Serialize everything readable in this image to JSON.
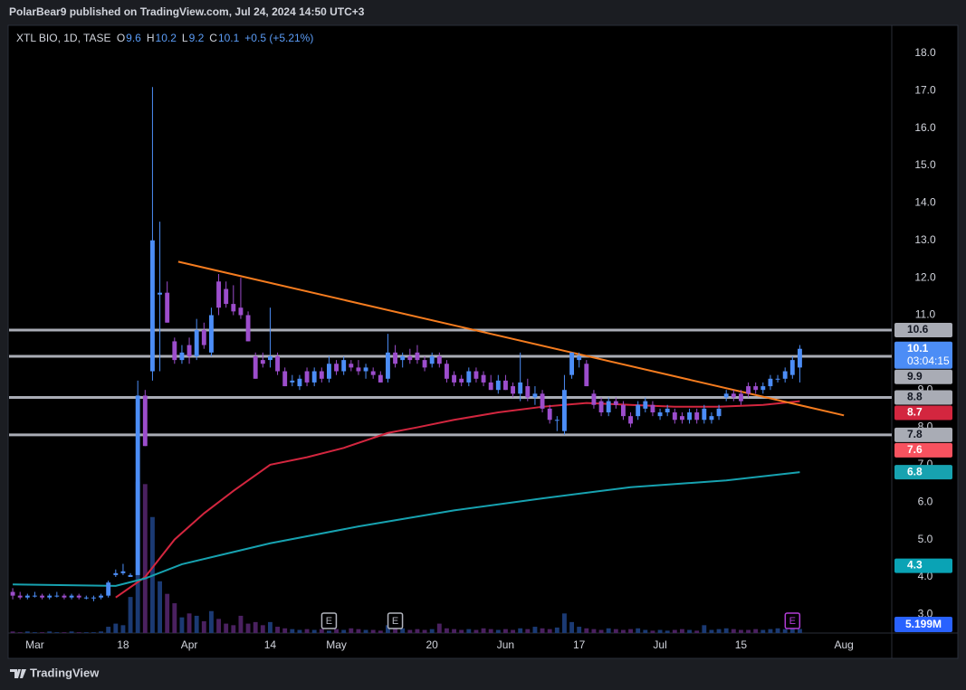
{
  "chart_data": {
    "type": "candlestick",
    "title": "PolarBear9 published on TradingView.com, Jul 24, 2024 14:50 UTC+3",
    "symbol": "XTL BIO, 1D, TASE",
    "legend": {
      "open": "O",
      "high": "H",
      "low": "L",
      "close": "C",
      "change": "+0.5 (+5.21%)"
    },
    "footer": "TradingView",
    "countdown": "03:04:15",
    "up_color": "#4c8df6",
    "down_color": "#9c4dcc",
    "candles": {
      "open": [
        3.6,
        3.5,
        3.45,
        3.5,
        3.5,
        3.45,
        3.5,
        3.5,
        3.45,
        3.5,
        3.45,
        3.45,
        3.45,
        3.5,
        4.05,
        4.1,
        4.0,
        4.05,
        8.85,
        9.5,
        11.55,
        11.6,
        10.3,
        9.8,
        10.2,
        9.9,
        10.6,
        10.0,
        11.9,
        11.7,
        11.3,
        11.2,
        11.0,
        9.9,
        9.8,
        9.8,
        9.9,
        9.5,
        9.2,
        9.1,
        9.5,
        9.2,
        9.5,
        9.3,
        9.7,
        9.5,
        9.7,
        9.6,
        9.5,
        9.5,
        9.4,
        9.3,
        10.0,
        9.8,
        9.9,
        10.0,
        9.8,
        9.7,
        9.9,
        9.7,
        9.4,
        9.3,
        9.2,
        9.5,
        9.4,
        9.2,
        9.0,
        9.25,
        9.1,
        8.9,
        9.1,
        8.8,
        8.9,
        8.5,
        8.2,
        7.9,
        9.4,
        9.8,
        9.7,
        8.9,
        8.7,
        8.4,
        8.7,
        8.6,
        8.3,
        8.3,
        8.5,
        8.6,
        8.3,
        8.4,
        8.4,
        8.3,
        8.2,
        8.4,
        8.2,
        8.2,
        8.3,
        8.8,
        8.9,
        8.9,
        9.1,
        9.1,
        9.0,
        9.1,
        9.3,
        9.3,
        9.4,
        9.6
      ],
      "high": [
        3.7,
        3.6,
        3.55,
        3.6,
        3.55,
        3.55,
        3.6,
        3.55,
        3.55,
        3.55,
        3.5,
        3.5,
        3.55,
        3.9,
        4.2,
        4.35,
        4.1,
        9.25,
        9.0,
        17.1,
        13.5,
        11.9,
        10.4,
        10.2,
        10.4,
        10.9,
        10.8,
        11.2,
        12.1,
        11.9,
        11.8,
        12.0,
        11.1,
        10.0,
        10.0,
        11.2,
        10.0,
        9.6,
        9.4,
        9.4,
        9.6,
        9.6,
        9.6,
        9.9,
        9.8,
        9.9,
        9.8,
        9.8,
        9.7,
        9.6,
        9.5,
        10.5,
        10.2,
        10.0,
        10.1,
        10.2,
        9.9,
        10.0,
        10.0,
        9.8,
        9.5,
        9.4,
        9.6,
        9.6,
        9.5,
        9.4,
        9.4,
        9.4,
        9.2,
        10.0,
        9.3,
        9.1,
        9.0,
        8.6,
        8.3,
        9.4,
        10.0,
        10.0,
        9.8,
        9.0,
        8.8,
        8.8,
        8.8,
        8.7,
        8.4,
        8.7,
        8.8,
        8.7,
        8.5,
        8.6,
        8.5,
        8.4,
        8.5,
        8.5,
        8.6,
        8.4,
        8.6,
        9.0,
        9.0,
        9.0,
        9.2,
        9.2,
        9.2,
        9.4,
        9.4,
        9.6,
        9.9,
        10.2
      ],
      "low": [
        3.4,
        3.4,
        3.4,
        3.45,
        3.4,
        3.4,
        3.45,
        3.4,
        3.4,
        3.4,
        3.4,
        3.35,
        3.4,
        3.45,
        4.0,
        4.05,
        4.0,
        4.05,
        7.5,
        9.25,
        9.5,
        10.8,
        9.7,
        9.7,
        9.7,
        9.8,
        10.1,
        9.9,
        11.0,
        11.2,
        11.0,
        10.9,
        10.3,
        9.3,
        9.6,
        9.6,
        9.4,
        9.1,
        9.1,
        9.0,
        9.1,
        9.1,
        9.2,
        9.2,
        9.4,
        9.4,
        9.5,
        9.4,
        9.3,
        9.3,
        9.2,
        9.2,
        9.6,
        9.6,
        9.7,
        9.7,
        9.5,
        9.6,
        9.6,
        9.2,
        9.1,
        9.1,
        9.1,
        9.2,
        9.1,
        9.0,
        8.9,
        9.0,
        8.8,
        8.7,
        8.7,
        8.6,
        8.4,
        8.1,
        7.9,
        7.8,
        9.3,
        9.6,
        9.1,
        8.5,
        8.3,
        8.3,
        8.5,
        8.2,
        8.0,
        8.2,
        8.4,
        8.3,
        8.2,
        8.3,
        8.1,
        8.1,
        8.1,
        8.1,
        8.1,
        8.1,
        8.2,
        8.7,
        8.7,
        8.6,
        8.8,
        8.9,
        8.9,
        9.0,
        9.2,
        9.2,
        9.3,
        9.2
      ],
      "close": [
        3.5,
        3.45,
        3.5,
        3.5,
        3.45,
        3.5,
        3.5,
        3.45,
        3.5,
        3.45,
        3.45,
        3.45,
        3.5,
        3.85,
        4.1,
        4.15,
        4.05,
        8.85,
        7.5,
        13.0,
        11.6,
        10.8,
        9.8,
        10.0,
        9.9,
        10.6,
        10.2,
        11.0,
        11.2,
        11.3,
        11.1,
        11.0,
        10.3,
        9.3,
        9.7,
        9.9,
        9.5,
        9.1,
        9.25,
        9.3,
        9.2,
        9.5,
        9.3,
        9.7,
        9.5,
        9.8,
        9.6,
        9.5,
        9.6,
        9.4,
        9.2,
        10.0,
        9.7,
        9.9,
        9.8,
        9.8,
        9.6,
        9.9,
        9.7,
        9.3,
        9.2,
        9.2,
        9.5,
        9.3,
        9.2,
        9.0,
        9.25,
        9.0,
        8.9,
        9.2,
        8.8,
        8.9,
        8.5,
        8.2,
        8.2,
        9.0,
        10.0,
        9.9,
        9.1,
        8.6,
        8.4,
        8.7,
        8.6,
        8.3,
        8.1,
        8.6,
        8.7,
        8.4,
        8.4,
        8.5,
        8.2,
        8.2,
        8.4,
        8.2,
        8.5,
        8.3,
        8.5,
        8.9,
        8.8,
        8.7,
        8.9,
        9.0,
        9.1,
        9.3,
        9.3,
        9.5,
        9.8,
        10.1
      ]
    },
    "volume": {
      "values": [
        2,
        1,
        2,
        1,
        1,
        2,
        1,
        1,
        2,
        1,
        1,
        1,
        2,
        8,
        12,
        10,
        46,
        193,
        190,
        148,
        66,
        50,
        38,
        20,
        25,
        22,
        15,
        28,
        18,
        12,
        10,
        22,
        12,
        14,
        10,
        14,
        8,
        6,
        5,
        4,
        5,
        4,
        5,
        3,
        5,
        4,
        6,
        5,
        4,
        4,
        3,
        10,
        8,
        6,
        4,
        5,
        4,
        5,
        12,
        6,
        5,
        4,
        5,
        4,
        6,
        5,
        4,
        5,
        4,
        6,
        5,
        8,
        6,
        5,
        7,
        25,
        14,
        8,
        6,
        5,
        4,
        6,
        5,
        4,
        5,
        6,
        4,
        3,
        4,
        3,
        4,
        5,
        4,
        3,
        10,
        4,
        5,
        6,
        5,
        4,
        4,
        5,
        4,
        5,
        6,
        5,
        6,
        5.199
      ],
      "last_label": "5.199M",
      "ylim": [
        0,
        300
      ],
      "up_color": "#1b3a73",
      "down_color": "#4a2160",
      "label_color": "#2962ff"
    },
    "moving_averages": [
      {
        "color": "#d3263f",
        "x": [
          14,
          18,
          22,
          26,
          30,
          35,
          40,
          45,
          51,
          55,
          60,
          66,
          72,
          78,
          84,
          90,
          96,
          102,
          107
        ],
        "values": [
          3.45,
          4.0,
          5.0,
          5.7,
          6.3,
          7.0,
          7.2,
          7.45,
          7.85,
          8.0,
          8.2,
          8.4,
          8.55,
          8.65,
          8.6,
          8.55,
          8.55,
          8.6,
          8.7
        ]
      },
      {
        "color": "#17a2b0",
        "x": [
          0,
          14,
          18,
          23,
          35,
          47,
          60,
          72,
          84,
          97,
          107
        ],
        "values": [
          3.8,
          3.76,
          3.96,
          4.34,
          4.9,
          5.35,
          5.78,
          6.1,
          6.4,
          6.58,
          6.8
        ]
      }
    ],
    "trendline": {
      "color": "#f57c1f",
      "x": [
        22.5,
        113
      ],
      "values": [
        12.43,
        8.32
      ]
    },
    "levels": {
      "color": "#a9acb5",
      "values": [
        10.6,
        9.9,
        8.8,
        7.8
      ]
    },
    "axis_marks": [
      {
        "value": 7.6,
        "color": "#f7525f"
      },
      {
        "value": 4.3,
        "color": "#0aa3b5"
      }
    ],
    "events": [
      {
        "x": 43,
        "label": "E",
        "color": "#b2b5be"
      },
      {
        "x": 52,
        "label": "E",
        "color": "#b2b5be"
      },
      {
        "x": 106,
        "label": "E",
        "color": "#b33dd6"
      }
    ],
    "xlim": [
      -0.5,
      119.5
    ],
    "ylim": [
      2.5,
      18.75
    ],
    "xticks": [
      {
        "value": 3,
        "label": "Mar"
      },
      {
        "value": 15,
        "label": "18"
      },
      {
        "value": 24,
        "label": "Apr"
      },
      {
        "value": 35,
        "label": "14"
      },
      {
        "value": 44,
        "label": "May"
      },
      {
        "value": 57,
        "label": "20"
      },
      {
        "value": 67,
        "label": "Jun"
      },
      {
        "value": 77,
        "label": "17"
      },
      {
        "value": 88,
        "label": "Jul"
      },
      {
        "value": 99,
        "label": "15"
      },
      {
        "value": 113,
        "label": "Aug"
      }
    ],
    "yticks": [
      {
        "value": 3,
        "label": "3.0"
      },
      {
        "value": 4,
        "label": "4.0"
      },
      {
        "value": 5,
        "label": "5.0"
      },
      {
        "value": 6,
        "label": "6.0"
      },
      {
        "value": 7,
        "label": "7.0"
      },
      {
        "value": 8,
        "label": "8.0"
      },
      {
        "value": 9,
        "label": "9.0"
      },
      {
        "value": 10,
        "label": "10.0"
      },
      {
        "value": 11,
        "label": "11.0"
      },
      {
        "value": 12,
        "label": "12.0"
      },
      {
        "value": 13,
        "label": "13.0"
      },
      {
        "value": 14,
        "label": "14.0"
      },
      {
        "value": 15,
        "label": "15.0"
      },
      {
        "value": 16,
        "label": "16.0"
      },
      {
        "value": 17,
        "label": "17.0"
      },
      {
        "value": 18,
        "label": "18.0"
      }
    ],
    "grid": false
  }
}
